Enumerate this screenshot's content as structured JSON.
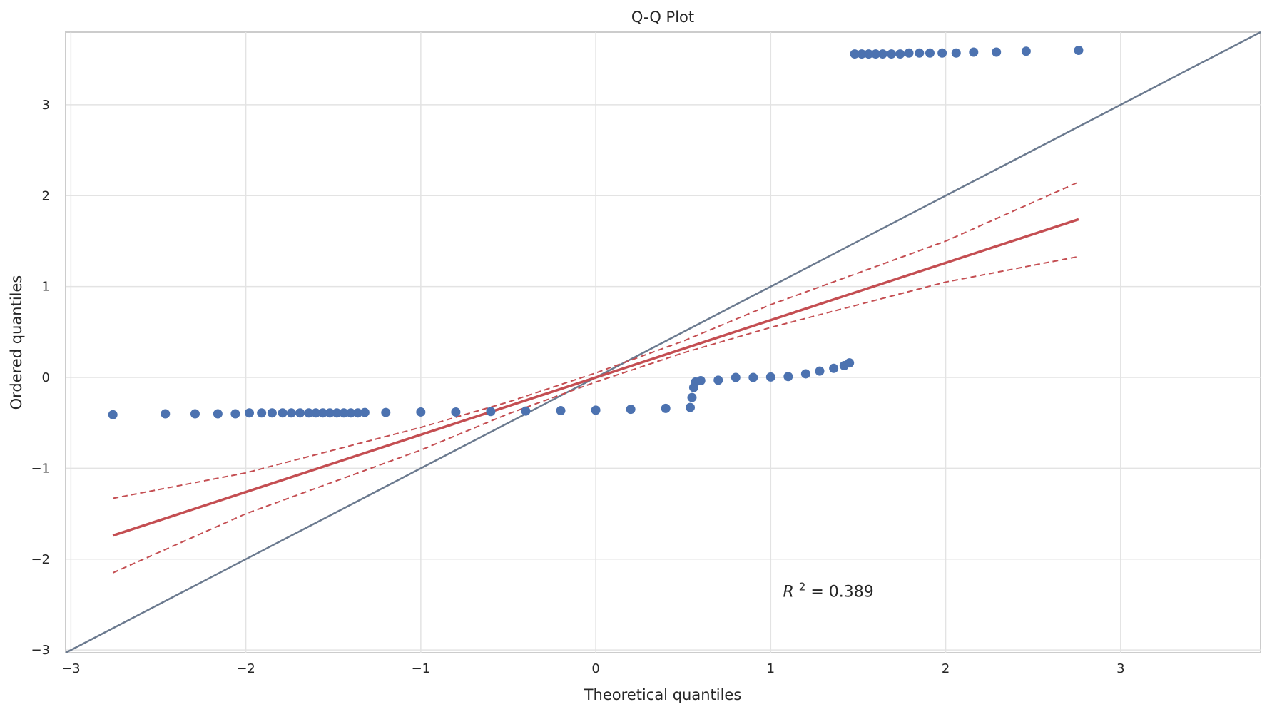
{
  "chart_data": {
    "type": "scatter",
    "title": "Q-Q Plot",
    "xlabel": "Theoretical quantiles",
    "ylabel": "Ordered quantiles",
    "xlim": [
      -3.03,
      3.8
    ],
    "ylim": [
      -3.03,
      3.8
    ],
    "xticks": [
      -3,
      -2,
      -1,
      0,
      1,
      2,
      3
    ],
    "yticks": [
      -3,
      -2,
      -1,
      0,
      1,
      2,
      3
    ],
    "xtick_labels": [
      "−3",
      "−2",
      "−1",
      "0",
      "1",
      "2",
      "3"
    ],
    "ytick_labels": [
      "−3",
      "−2",
      "−1",
      "0",
      "1",
      "2",
      "3"
    ],
    "grid": true,
    "annotation": {
      "text": "R² = 0.389",
      "parts": [
        "R",
        "2",
        " = 0.389"
      ],
      "x": 1.07,
      "y": -2.35
    },
    "series": [
      {
        "kind": "points",
        "color": "#4c72b0",
        "points": [
          [
            -2.76,
            -0.41
          ],
          [
            -2.46,
            -0.4
          ],
          [
            -2.29,
            -0.4
          ],
          [
            -2.16,
            -0.4
          ],
          [
            -2.06,
            -0.4
          ],
          [
            -1.98,
            -0.39
          ],
          [
            -1.91,
            -0.39
          ],
          [
            -1.85,
            -0.39
          ],
          [
            -1.79,
            -0.39
          ],
          [
            -1.74,
            -0.39
          ],
          [
            -1.69,
            -0.39
          ],
          [
            -1.64,
            -0.39
          ],
          [
            -1.6,
            -0.39
          ],
          [
            -1.56,
            -0.39
          ],
          [
            -1.52,
            -0.39
          ],
          [
            -1.48,
            -0.39
          ],
          [
            -1.44,
            -0.39
          ],
          [
            -1.4,
            -0.39
          ],
          [
            -1.36,
            -0.39
          ],
          [
            -1.32,
            -0.385
          ],
          [
            -1.2,
            -0.385
          ],
          [
            -1.0,
            -0.38
          ],
          [
            -0.8,
            -0.38
          ],
          [
            -0.6,
            -0.375
          ],
          [
            -0.4,
            -0.37
          ],
          [
            -0.2,
            -0.365
          ],
          [
            0.0,
            -0.36
          ],
          [
            0.2,
            -0.35
          ],
          [
            0.4,
            -0.34
          ],
          [
            0.54,
            -0.33
          ],
          [
            0.55,
            -0.22
          ],
          [
            0.56,
            -0.11
          ],
          [
            0.57,
            -0.05
          ],
          [
            0.6,
            -0.035
          ],
          [
            0.7,
            -0.03
          ],
          [
            0.8,
            0.0
          ],
          [
            0.9,
            0.0
          ],
          [
            1.0,
            0.005
          ],
          [
            1.1,
            0.01
          ],
          [
            1.2,
            0.04
          ],
          [
            1.28,
            0.07
          ],
          [
            1.36,
            0.1
          ],
          [
            1.42,
            0.13
          ],
          [
            1.45,
            0.16
          ],
          [
            1.48,
            3.56
          ],
          [
            1.52,
            3.56
          ],
          [
            1.56,
            3.56
          ],
          [
            1.6,
            3.56
          ],
          [
            1.64,
            3.56
          ],
          [
            1.69,
            3.56
          ],
          [
            1.74,
            3.56
          ],
          [
            1.79,
            3.57
          ],
          [
            1.85,
            3.57
          ],
          [
            1.91,
            3.57
          ],
          [
            1.98,
            3.57
          ],
          [
            2.06,
            3.57
          ],
          [
            2.16,
            3.58
          ],
          [
            2.29,
            3.58
          ],
          [
            2.46,
            3.59
          ],
          [
            2.76,
            3.6
          ]
        ]
      },
      {
        "kind": "fit",
        "color": "#c44e52",
        "x": [
          -2.76,
          2.76
        ],
        "y": [
          -1.74,
          1.74
        ]
      },
      {
        "kind": "confidence-band",
        "color": "#c44e52",
        "upper": [
          [
            -2.76,
            -1.33
          ],
          [
            -2.0,
            -1.05
          ],
          [
            -1.0,
            -0.55
          ],
          [
            -0.5,
            -0.27
          ],
          [
            0.0,
            0.05
          ],
          [
            0.5,
            0.4
          ],
          [
            1.0,
            0.8
          ],
          [
            2.0,
            1.5
          ],
          [
            2.76,
            2.15
          ]
        ],
        "lower": [
          [
            -2.76,
            -2.15
          ],
          [
            -2.0,
            -1.5
          ],
          [
            -1.0,
            -0.8
          ],
          [
            -0.5,
            -0.4
          ],
          [
            0.0,
            -0.05
          ],
          [
            0.5,
            0.27
          ],
          [
            1.0,
            0.55
          ],
          [
            2.0,
            1.05
          ],
          [
            2.76,
            1.33
          ]
        ]
      },
      {
        "kind": "reference",
        "color": "#6b7a8f",
        "x": [
          -3.03,
          3.8
        ],
        "y": [
          -3.03,
          3.8
        ]
      }
    ]
  }
}
